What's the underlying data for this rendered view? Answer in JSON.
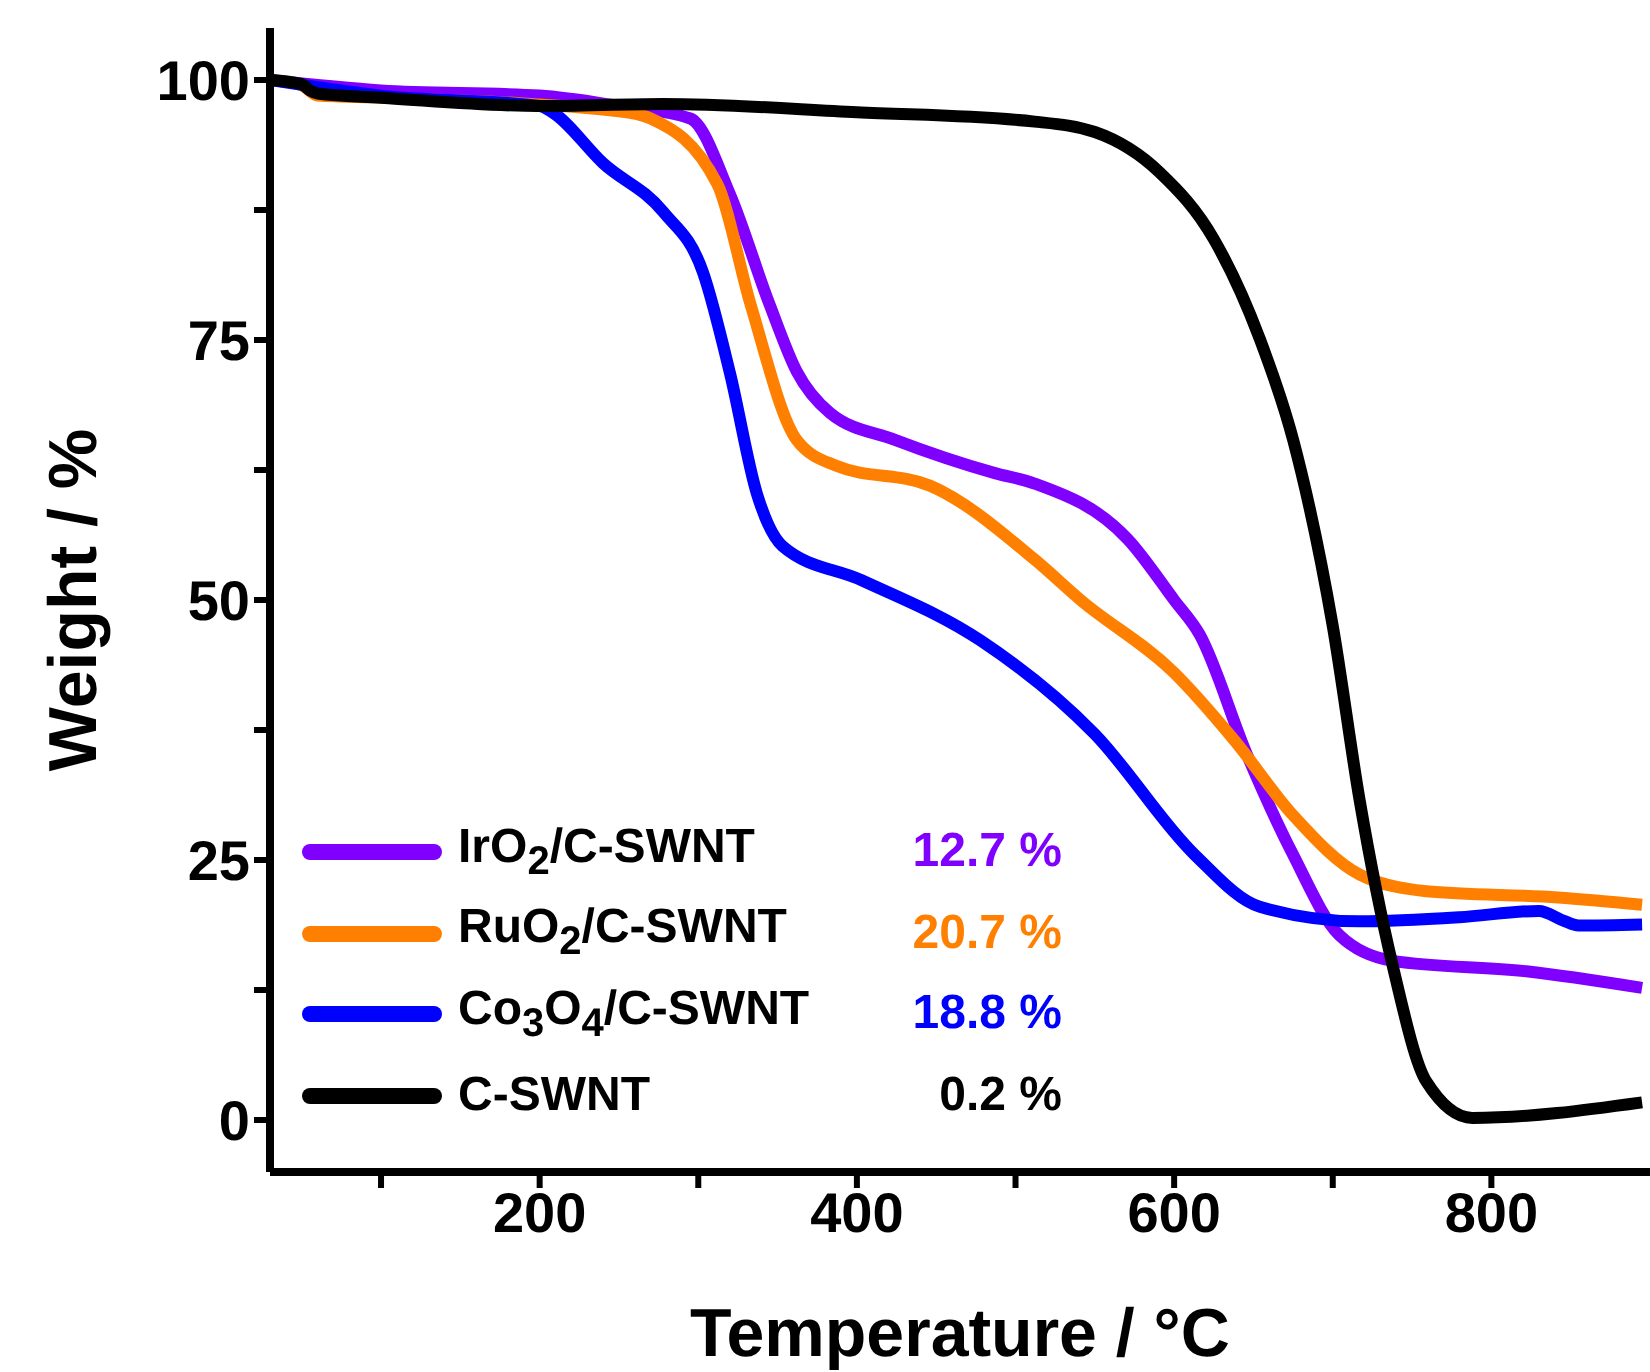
{
  "chart_data": {
    "type": "line",
    "xlabel": "Temperature / °C",
    "ylabel": "Weight / %",
    "xlim": [
      30,
      900
    ],
    "xticks": [
      {
        "value": 100,
        "label": null
      },
      200,
      {
        "value": 300,
        "label": null
      },
      400,
      {
        "value": 500,
        "label": null
      },
      600,
      {
        "value": 700,
        "label": null
      },
      800
    ],
    "ylim": [
      -5,
      105
    ],
    "yticks": [
      0,
      {
        "value": 12.5,
        "label": null
      },
      25,
      {
        "value": 37.5,
        "label": null
      },
      50,
      {
        "value": 62.5,
        "label": null
      },
      75,
      {
        "value": 87.5,
        "label": null
      },
      100
    ],
    "grid": false,
    "legend": "bottom left",
    "marker": "none",
    "line_style": "solid",
    "annotations": [
      "12.7 %",
      "20.7 %",
      "18.8 %",
      "0.2 %"
    ],
    "series": [
      {
        "name": "IrO$_{2}$/C-SWNT",
        "color": "#8000ff",
        "x": [
          30,
          100,
          200,
          250,
          295,
          320,
          345,
          362,
          383,
          424,
          487,
          512,
          571,
          600,
          616,
          646,
          675,
          704,
          738,
          822,
          895
        ],
        "values": [
          100,
          99,
          98.5,
          97.5,
          96.3,
          89,
          78.4,
          72,
          68,
          65.4,
          62.2,
          61.2,
          55.8,
          50,
          46.7,
          35.1,
          25.5,
          17.8,
          15.3,
          14.3,
          12.7
        ]
      },
      {
        "name": "RuO$_{2}$/C-SWNT",
        "color": "#ff8000",
        "x": [
          30,
          50,
          60,
          100,
          250,
          270,
          312,
          333,
          362,
          387,
          446,
          512,
          541,
          600,
          638,
          675,
          717,
          759,
          842,
          895
        ],
        "values": [
          100,
          99.5,
          98.5,
          98.3,
          97,
          96.3,
          90,
          78.4,
          65.4,
          62.9,
          61,
          53.9,
          50,
          43,
          36.5,
          29.3,
          23.6,
          22,
          21.4,
          20.7
        ]
      },
      {
        "name": "Co$_{3}$O$_{4}$/C-SWNT",
        "color": "#0000ff",
        "x": [
          30,
          100,
          200,
          208,
          240,
          278,
          303,
          320,
          337,
          353,
          403,
          478,
          550,
          613,
          654,
          717,
          780,
          830,
          845,
          855,
          895
        ],
        "values": [
          100,
          98.5,
          97.5,
          96.9,
          92,
          87.3,
          81.5,
          71.8,
          60.2,
          55.2,
          51.9,
          46.1,
          37.1,
          25.5,
          20.5,
          19.1,
          19.5,
          20.1,
          19.2,
          18.7,
          18.8
        ]
      },
      {
        "name": "C-SWNT",
        "color": "#000000",
        "x": [
          30,
          50,
          55,
          60,
          100,
          200,
          278,
          400,
          512,
          550,
          591,
          625,
          654,
          675,
          700,
          717,
          738,
          759,
          788,
          895
        ],
        "values": [
          100,
          99.6,
          99,
          98.7,
          98.3,
          97.5,
          97.7,
          96.9,
          96,
          95,
          91.1,
          84.7,
          75.1,
          65.4,
          47.5,
          30.7,
          14.7,
          3.7,
          0.2,
          1.7
        ]
      }
    ]
  }
}
